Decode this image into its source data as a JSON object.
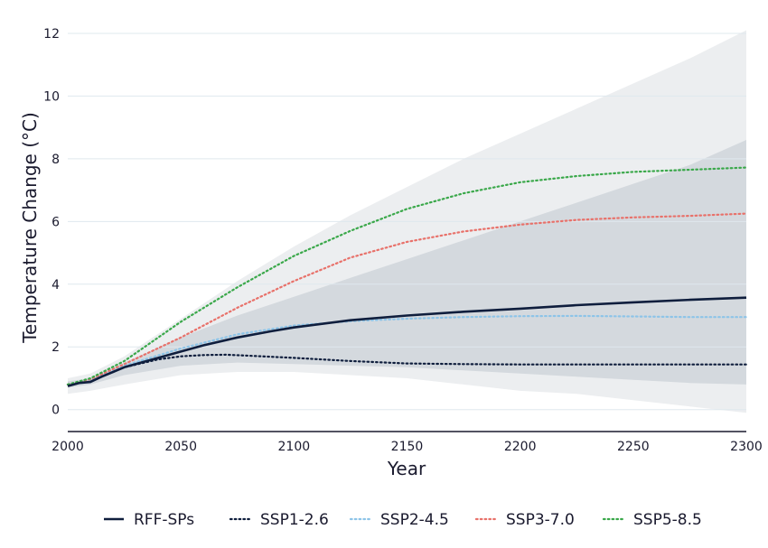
{
  "chart_data": {
    "type": "line",
    "xlabel": "Year",
    "ylabel": "Temperature Change (°C)",
    "xlim": [
      2000,
      2300
    ],
    "ylim": [
      -0.7,
      12.2
    ],
    "x_ticks": [
      "2000",
      "2050",
      "2100",
      "2150",
      "2200",
      "2250",
      "2300"
    ],
    "x_tick_values": [
      2000,
      2050,
      2100,
      2150,
      2200,
      2250,
      2300
    ],
    "y_ticks": [
      "0",
      "2",
      "4",
      "6",
      "8",
      "10",
      "12"
    ],
    "y_tick_values": [
      0,
      2,
      4,
      6,
      8,
      10,
      12
    ],
    "grid": "horizontal",
    "legend_position": "bottom",
    "bands": [
      {
        "kind": "outer",
        "color": "#eceef0",
        "x": [
          2000,
          2010,
          2025,
          2050,
          2075,
          2100,
          2125,
          2150,
          2175,
          2200,
          2225,
          2250,
          2275,
          2300
        ],
        "lower": [
          0.5,
          0.6,
          0.8,
          1.1,
          1.2,
          1.2,
          1.1,
          1.0,
          0.8,
          0.6,
          0.5,
          0.3,
          0.1,
          -0.1
        ],
        "upper": [
          1.0,
          1.15,
          1.7,
          2.9,
          4.1,
          5.2,
          6.2,
          7.1,
          8.0,
          8.8,
          9.6,
          10.4,
          11.2,
          12.1
        ]
      },
      {
        "kind": "inner",
        "color": "#d4d9de",
        "x": [
          2000,
          2010,
          2025,
          2050,
          2075,
          2100,
          2125,
          2150,
          2175,
          2200,
          2225,
          2250,
          2275,
          2300
        ],
        "lower": [
          0.7,
          0.8,
          1.1,
          1.4,
          1.5,
          1.45,
          1.4,
          1.35,
          1.25,
          1.15,
          1.05,
          0.95,
          0.85,
          0.8
        ],
        "upper": [
          0.9,
          1.0,
          1.5,
          2.3,
          3.0,
          3.6,
          4.2,
          4.8,
          5.4,
          6.0,
          6.6,
          7.2,
          7.8,
          8.6
        ]
      }
    ],
    "series": [
      {
        "name": "RFF-SPs",
        "style": "solid",
        "color": "#0f1e3d",
        "x": [
          2000,
          2005,
          2010,
          2015,
          2025,
          2040,
          2050,
          2060,
          2075,
          2090,
          2100,
          2125,
          2150,
          2175,
          2200,
          2225,
          2250,
          2275,
          2300
        ],
        "values": [
          0.75,
          0.85,
          0.88,
          1.05,
          1.35,
          1.65,
          1.85,
          2.05,
          2.3,
          2.5,
          2.62,
          2.85,
          3.0,
          3.12,
          3.22,
          3.33,
          3.42,
          3.5,
          3.57
        ]
      },
      {
        "name": "SSP1-2.6",
        "style": "dotted",
        "color": "#0f1e3d",
        "x": [
          2000,
          2010,
          2025,
          2040,
          2050,
          2060,
          2070,
          2080,
          2100,
          2125,
          2150,
          2175,
          2200,
          2225,
          2250,
          2275,
          2300
        ],
        "values": [
          0.8,
          0.95,
          1.35,
          1.6,
          1.7,
          1.74,
          1.75,
          1.72,
          1.65,
          1.55,
          1.47,
          1.45,
          1.44,
          1.44,
          1.44,
          1.44,
          1.44
        ]
      },
      {
        "name": "SSP2-4.5",
        "style": "dotted",
        "color": "#8dc4e8",
        "x": [
          2000,
          2010,
          2025,
          2050,
          2075,
          2100,
          2125,
          2150,
          2175,
          2200,
          2225,
          2250,
          2275,
          2300
        ],
        "values": [
          0.8,
          0.95,
          1.4,
          1.95,
          2.4,
          2.68,
          2.82,
          2.9,
          2.95,
          2.98,
          2.99,
          2.97,
          2.95,
          2.95
        ]
      },
      {
        "name": "SSP3-7.0",
        "style": "dotted",
        "color": "#e8716a",
        "x": [
          2000,
          2010,
          2025,
          2050,
          2075,
          2100,
          2125,
          2150,
          2175,
          2200,
          2225,
          2250,
          2275,
          2300
        ],
        "values": [
          0.8,
          0.97,
          1.45,
          2.3,
          3.25,
          4.1,
          4.85,
          5.35,
          5.68,
          5.9,
          6.05,
          6.13,
          6.18,
          6.25
        ]
      },
      {
        "name": "SSP5-8.5",
        "style": "dotted",
        "color": "#3aa84a",
        "x": [
          2000,
          2010,
          2025,
          2050,
          2075,
          2100,
          2125,
          2150,
          2175,
          2200,
          2225,
          2250,
          2275,
          2300
        ],
        "values": [
          0.8,
          1.0,
          1.55,
          2.8,
          3.9,
          4.9,
          5.7,
          6.4,
          6.9,
          7.25,
          7.45,
          7.58,
          7.65,
          7.72
        ]
      }
    ]
  }
}
